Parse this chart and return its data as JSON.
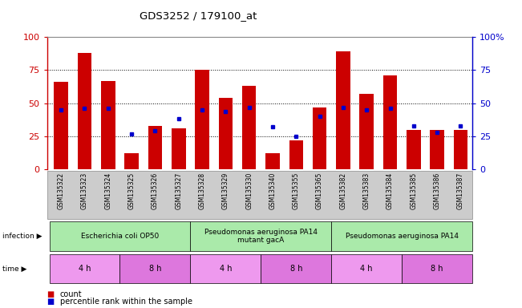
{
  "title": "GDS3252 / 179100_at",
  "samples": [
    "GSM135322",
    "GSM135323",
    "GSM135324",
    "GSM135325",
    "GSM135326",
    "GSM135327",
    "GSM135328",
    "GSM135329",
    "GSM135330",
    "GSM135340",
    "GSM135355",
    "GSM135365",
    "GSM135382",
    "GSM135383",
    "GSM135384",
    "GSM135385",
    "GSM135386",
    "GSM135387"
  ],
  "counts": [
    66,
    88,
    67,
    12,
    33,
    31,
    75,
    54,
    63,
    12,
    22,
    47,
    89,
    57,
    71,
    30,
    30,
    30
  ],
  "percentiles": [
    45,
    46,
    46,
    27,
    29,
    38,
    45,
    44,
    47,
    32,
    25,
    40,
    47,
    45,
    46,
    33,
    28,
    33
  ],
  "bar_color": "#cc0000",
  "dot_color": "#0000cc",
  "ylim": [
    0,
    100
  ],
  "yticks": [
    0,
    25,
    50,
    75,
    100
  ],
  "left_yticklabels": [
    "0",
    "25",
    "50",
    "75",
    "100"
  ],
  "right_yticklabels": [
    "0",
    "25",
    "50",
    "75",
    "100%"
  ],
  "infection_groups": [
    {
      "label": "Escherichia coli OP50",
      "start": 0,
      "end": 6,
      "color": "#aaeaaa"
    },
    {
      "label": "Pseudomonas aeruginosa PA14\nmutant gacA",
      "start": 6,
      "end": 12,
      "color": "#aaeaaa"
    },
    {
      "label": "Pseudomonas aeruginosa PA14",
      "start": 12,
      "end": 18,
      "color": "#aaeaaa"
    }
  ],
  "time_groups": [
    {
      "label": "4 h",
      "start": 0,
      "end": 3,
      "color": "#ee99ee"
    },
    {
      "label": "8 h",
      "start": 3,
      "end": 6,
      "color": "#dd77dd"
    },
    {
      "label": "4 h",
      "start": 6,
      "end": 9,
      "color": "#ee99ee"
    },
    {
      "label": "8 h",
      "start": 9,
      "end": 12,
      "color": "#dd77dd"
    },
    {
      "label": "4 h",
      "start": 12,
      "end": 15,
      "color": "#ee99ee"
    },
    {
      "label": "8 h",
      "start": 15,
      "end": 18,
      "color": "#dd77dd"
    }
  ],
  "legend_count_label": "count",
  "legend_percentile_label": "percentile rank within the sample",
  "left_axis_color": "#cc0000",
  "right_axis_color": "#0000cc",
  "sample_area_color": "#cccccc",
  "bar_width": 0.6,
  "xlim_left": -0.6,
  "xlim_right": 17.5
}
